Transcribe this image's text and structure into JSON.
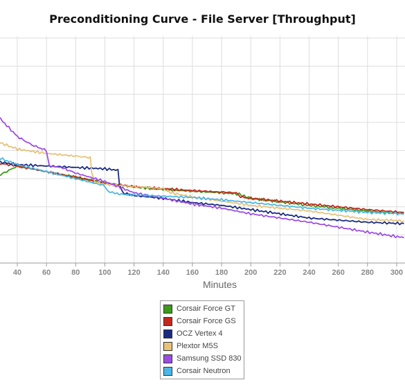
{
  "chart_data": {
    "type": "line",
    "title": "Preconditioning Curve - File Server [Throughput]",
    "xlabel": "Minutes",
    "ylabel": "",
    "xlim": [
      27,
      305
    ],
    "ylim": [
      0,
      8
    ],
    "x_ticks": [
      40,
      60,
      80,
      100,
      120,
      140,
      160,
      180,
      200,
      220,
      240,
      260,
      280,
      300
    ],
    "y_gridlines": [
      1,
      2,
      3,
      4,
      5,
      6,
      7,
      8
    ],
    "grid": true,
    "legend_position": "bottom-center",
    "series": [
      {
        "name": "Corsair Force GT",
        "color": "#3c9a1a",
        "points": [
          [
            27,
            3.1
          ],
          [
            40,
            3.45
          ],
          [
            60,
            3.25
          ],
          [
            80,
            3.05
          ],
          [
            100,
            2.85
          ],
          [
            120,
            2.7
          ],
          [
            140,
            2.62
          ],
          [
            160,
            2.55
          ],
          [
            180,
            2.5
          ],
          [
            192,
            2.45
          ],
          [
            194,
            2.4
          ],
          [
            200,
            2.3
          ],
          [
            240,
            2.05
          ],
          [
            280,
            1.85
          ],
          [
            305,
            1.75
          ]
        ]
      },
      {
        "name": "Corsair Force GS",
        "color": "#c4281c",
        "points": [
          [
            27,
            3.55
          ],
          [
            40,
            3.45
          ],
          [
            60,
            3.25
          ],
          [
            80,
            3.05
          ],
          [
            100,
            2.85
          ],
          [
            120,
            2.72
          ],
          [
            140,
            2.64
          ],
          [
            160,
            2.58
          ],
          [
            180,
            2.52
          ],
          [
            190,
            2.5
          ],
          [
            193,
            2.35
          ],
          [
            200,
            2.3
          ],
          [
            240,
            2.1
          ],
          [
            280,
            1.9
          ],
          [
            305,
            1.8
          ]
        ]
      },
      {
        "name": "OCZ Vertex 4",
        "color": "#1a2b80",
        "points": [
          [
            27,
            3.6
          ],
          [
            40,
            3.5
          ],
          [
            60,
            3.45
          ],
          [
            80,
            3.4
          ],
          [
            100,
            3.35
          ],
          [
            109,
            3.3
          ],
          [
            110,
            2.8
          ],
          [
            112,
            2.5
          ],
          [
            120,
            2.4
          ],
          [
            140,
            2.3
          ],
          [
            160,
            2.15
          ],
          [
            180,
            2.05
          ],
          [
            200,
            1.9
          ],
          [
            240,
            1.6
          ],
          [
            280,
            1.45
          ],
          [
            305,
            1.4
          ]
        ]
      },
      {
        "name": "Plextor M5S",
        "color": "#e6c27a",
        "points": [
          [
            27,
            4.3
          ],
          [
            40,
            4.05
          ],
          [
            60,
            3.9
          ],
          [
            80,
            3.8
          ],
          [
            90,
            3.75
          ],
          [
            91,
            3.25
          ],
          [
            93,
            2.9
          ],
          [
            100,
            2.8
          ],
          [
            120,
            2.72
          ],
          [
            140,
            2.65
          ],
          [
            145,
            2.5
          ],
          [
            160,
            2.35
          ],
          [
            180,
            2.2
          ],
          [
            200,
            2.05
          ],
          [
            240,
            1.85
          ],
          [
            280,
            1.55
          ],
          [
            305,
            1.5
          ]
        ]
      },
      {
        "name": "Samsung SSD 830",
        "color": "#9b4de3",
        "points": [
          [
            27,
            5.2
          ],
          [
            40,
            4.5
          ],
          [
            50,
            4.2
          ],
          [
            60,
            4.0
          ],
          [
            62,
            3.45
          ],
          [
            70,
            3.4
          ],
          [
            80,
            3.2
          ],
          [
            100,
            2.9
          ],
          [
            120,
            2.5
          ],
          [
            140,
            2.3
          ],
          [
            160,
            2.1
          ],
          [
            180,
            1.95
          ],
          [
            200,
            1.75
          ],
          [
            240,
            1.45
          ],
          [
            280,
            1.1
          ],
          [
            305,
            0.9
          ]
        ]
      },
      {
        "name": "Corsair Neutron",
        "color": "#4bb6e8",
        "points": [
          [
            27,
            3.75
          ],
          [
            40,
            3.5
          ],
          [
            60,
            3.25
          ],
          [
            80,
            3.0
          ],
          [
            100,
            2.75
          ],
          [
            102,
            2.55
          ],
          [
            110,
            2.45
          ],
          [
            120,
            2.42
          ],
          [
            140,
            2.38
          ],
          [
            160,
            2.33
          ],
          [
            180,
            2.25
          ],
          [
            200,
            2.15
          ],
          [
            240,
            1.95
          ],
          [
            280,
            1.8
          ],
          [
            305,
            1.75
          ]
        ]
      }
    ]
  }
}
